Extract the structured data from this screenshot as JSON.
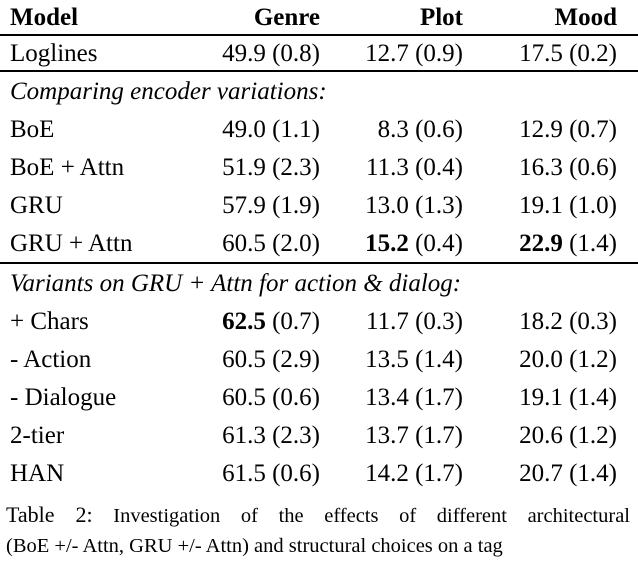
{
  "table": {
    "headers": {
      "model": "Model",
      "genre": "Genre",
      "plot": "Plot",
      "mood": "Mood"
    },
    "sections": {
      "encoders": "Comparing encoder variations:",
      "variants": "Variants on GRU + Attn for action & dialog:"
    },
    "rows": [
      {
        "model": "Loglines",
        "genre": "49.9",
        "genre_sd": "(0.8)",
        "plot": "12.7",
        "plot_sd": "(0.9)",
        "mood": "17.5",
        "mood_sd": "(0.2)"
      },
      {
        "model": "BoE",
        "genre": "49.0",
        "genre_sd": "(1.1)",
        "plot": "8.3",
        "plot_sd": "(0.6)",
        "mood": "12.9",
        "mood_sd": "(0.7)"
      },
      {
        "model": "BoE + Attn",
        "genre": "51.9",
        "genre_sd": "(2.3)",
        "plot": "11.3",
        "plot_sd": "(0.4)",
        "mood": "16.3",
        "mood_sd": "(0.6)"
      },
      {
        "model": "GRU",
        "genre": "57.9",
        "genre_sd": "(1.9)",
        "plot": "13.0",
        "plot_sd": "(1.3)",
        "mood": "19.1",
        "mood_sd": "(1.0)"
      },
      {
        "model": "GRU + Attn",
        "genre": "60.5",
        "genre_sd": "(2.0)",
        "plot": "15.2",
        "plot_sd": "(0.4)",
        "mood": "22.9",
        "mood_sd": "(1.4)",
        "plot_bold": true,
        "mood_bold": true
      },
      {
        "model": "+ Chars",
        "genre": "62.5",
        "genre_sd": "(0.7)",
        "plot": "11.7",
        "plot_sd": "(0.3)",
        "mood": "18.2",
        "mood_sd": "(0.3)",
        "genre_bold": true
      },
      {
        "model": "- Action",
        "genre": "60.5",
        "genre_sd": "(2.9)",
        "plot": "13.5",
        "plot_sd": "(1.4)",
        "mood": "20.0",
        "mood_sd": "(1.2)"
      },
      {
        "model": "- Dialogue",
        "genre": "60.5",
        "genre_sd": "(0.6)",
        "plot": "13.4",
        "plot_sd": "(1.7)",
        "mood": "19.1",
        "mood_sd": "(1.4)"
      },
      {
        "model": "2-tier",
        "genre": "61.3",
        "genre_sd": "(2.3)",
        "plot": "13.7",
        "plot_sd": "(1.7)",
        "mood": "20.6",
        "mood_sd": "(1.2)"
      },
      {
        "model": "HAN",
        "genre": "61.5",
        "genre_sd": "(0.6)",
        "plot": "14.2",
        "plot_sd": "(1.7)",
        "mood": "20.7",
        "mood_sd": "(1.4)"
      }
    ]
  },
  "caption": {
    "label": "Table 2:",
    "line1": "Investigation of the effects of different architectural",
    "line2": "(BoE +/- Attn, GRU +/- Attn) and structural choices on a tag"
  }
}
